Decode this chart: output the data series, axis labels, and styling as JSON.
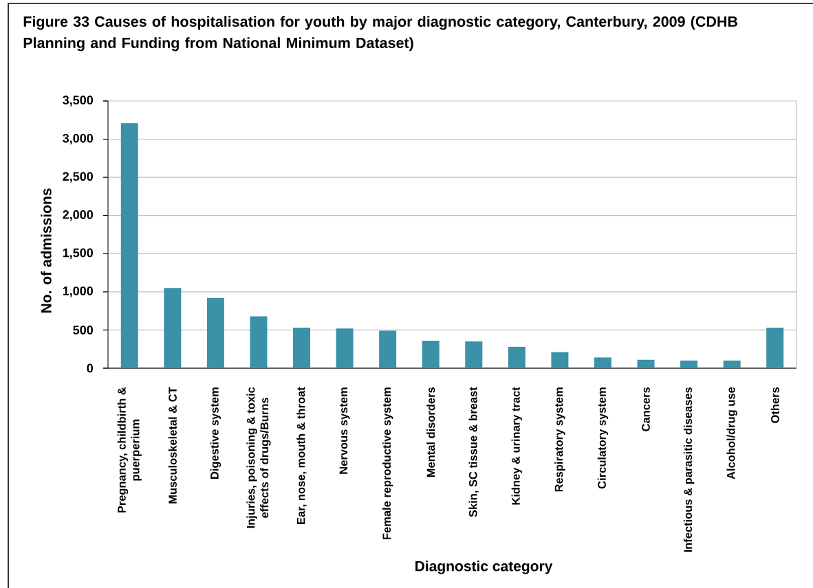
{
  "chart_data": {
    "type": "bar",
    "title": "Figure 33 Causes of hospitalisation for youth by major diagnostic category, Canterbury, 2009 (CDHB Planning and Funding from National Minimum Dataset)",
    "xlabel": "Diagnostic category",
    "ylabel": "No. of admissions",
    "categories": [
      "Pregnancy, childbirth & puerperium",
      "Musculoskeletal & CT",
      "Digestive system",
      "Injuries, poisoning & toxic effects of drugs/Burns",
      "Ear, nose, mouth & throat",
      "Nervous system",
      "Female reproductive system",
      "Mental disorders",
      "Skin, SC tissue & breast",
      "Kidney & urinary tract",
      "Respiratory system",
      "Circulatory system",
      "Cancers",
      "Infectious & parasitic diseases",
      "Alcohol/drug use",
      "Others"
    ],
    "values": [
      3210,
      1050,
      920,
      680,
      530,
      520,
      490,
      360,
      350,
      280,
      210,
      140,
      110,
      100,
      100,
      530
    ],
    "color": "#3a91a8",
    "ylim": [
      0,
      3500
    ],
    "yticks": [
      0,
      500,
      {
        "value": 1000,
        "label": "1,000"
      },
      {
        "value": 1500,
        "label": "1,500"
      },
      {
        "value": 2000,
        "label": "2,000"
      },
      {
        "value": 2500,
        "label": "2,500"
      },
      {
        "value": 3000,
        "label": "3,000"
      },
      {
        "value": 3500,
        "label": "3,500"
      }
    ],
    "grid": "y"
  }
}
